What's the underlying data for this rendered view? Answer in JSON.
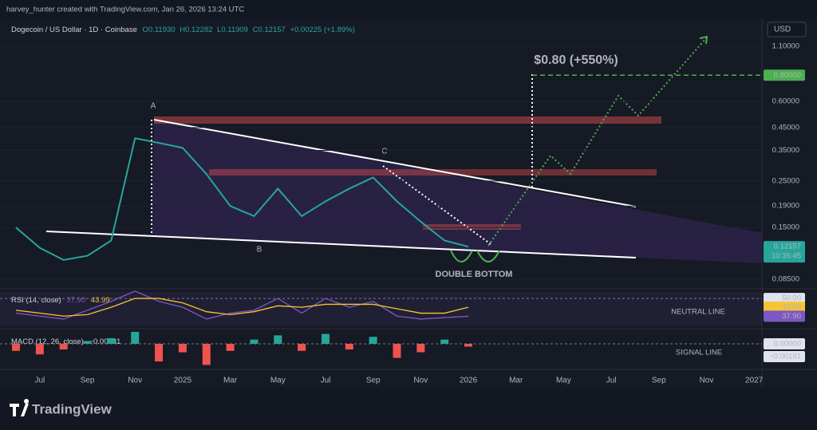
{
  "header": {
    "credit": "harvey_hunter created with TradingView.com, Jan 26, 2026 13:24 UTC",
    "brand": "TradingView",
    "currency": "USD"
  },
  "chart_data": [
    {
      "type": "line",
      "title": "Dogecoin / US Dollar · 1D · Coinbase",
      "ohlc": [
        "O0.11930",
        "H0.12282",
        "L0.11909",
        "C0.12157",
        "+0.00225 (+1.89%)"
      ],
      "log_scale": true,
      "x": [
        "2024-06",
        "2024-07",
        "2024-08",
        "2024-09",
        "2024-10",
        "2024-11",
        "2024-12",
        "2025-01",
        "2025-02",
        "2025-03",
        "2025-04",
        "2025-05",
        "2025-06",
        "2025-07",
        "2025-08",
        "2025-09",
        "2025-10",
        "2025-11",
        "2025-12",
        "2026-01"
      ],
      "series": [
        {
          "color": "#26a69a",
          "values": [
            0.15,
            0.12,
            0.105,
            0.11,
            0.13,
            0.4,
            0.38,
            0.36,
            0.27,
            0.19,
            0.17,
            0.23,
            0.17,
            0.2,
            0.23,
            0.26,
            0.2,
            0.16,
            0.13,
            0.12157
          ]
        }
      ],
      "xlim": [
        "2024-06",
        "2027-02"
      ],
      "xticks": [
        {
          "value": "2024-07",
          "label": "Jul"
        },
        {
          "value": "2024-09",
          "label": "Sep"
        },
        {
          "value": "2024-11",
          "label": "Nov"
        },
        {
          "value": "2025-01",
          "label": "2025"
        },
        {
          "value": "2025-03",
          "label": "Mar"
        },
        {
          "value": "2025-05",
          "label": "May"
        },
        {
          "value": "2025-07",
          "label": "Jul"
        },
        {
          "value": "2025-09",
          "label": "Sep"
        },
        {
          "value": "2025-11",
          "label": "Nov"
        },
        {
          "value": "2026-01",
          "label": "2026"
        },
        {
          "value": "2026-03",
          "label": "Mar"
        },
        {
          "value": "2026-05",
          "label": "May"
        },
        {
          "value": "2026-07",
          "label": "Jul"
        },
        {
          "value": "2026-09",
          "label": "Sep"
        },
        {
          "value": "2026-11",
          "label": "Nov"
        },
        {
          "value": "2027-01",
          "label": "2027"
        }
      ],
      "ylim": [
        0.0765,
        1.43
      ],
      "yticks": [
        {
          "value": 1.1,
          "label": "1.10000"
        },
        {
          "value": 0.6,
          "label": "0.60000"
        },
        {
          "value": 0.45,
          "label": "0.45000"
        },
        {
          "value": 0.35,
          "label": "0.35000"
        },
        {
          "value": 0.25,
          "label": "0.25000"
        },
        {
          "value": 0.19,
          "label": "0.19000"
        },
        {
          "value": 0.15,
          "label": "0.15000"
        },
        {
          "value": 0.085,
          "label": "0.08500"
        }
      ],
      "last_price": {
        "value": 0.12157,
        "label": "0.12157"
      },
      "countdown": "10:35:45",
      "target": {
        "value": 0.8,
        "label": "0.80000",
        "color": "#4caf50"
      },
      "annotations": [
        "$0.80 (+550%)",
        "DOUBLE BOTTOM",
        "A",
        "B",
        "C"
      ]
    },
    {
      "type": "line",
      "title": "RSI (14, close)",
      "series": [
        {
          "color": "#7e57c2",
          "values": [
            40,
            38,
            36,
            42,
            48,
            55,
            48,
            44,
            36,
            40,
            42,
            50,
            40,
            50,
            44,
            48,
            38,
            36,
            37,
            37.9
          ],
          "last_label": "37.90"
        },
        {
          "color": "#f7c531",
          "values": [
            42,
            40,
            38,
            39,
            44,
            50,
            50,
            47,
            41,
            39,
            41,
            45,
            44,
            46,
            46,
            46,
            43,
            40,
            40,
            43.99
          ],
          "last_label": "43.99"
        }
      ],
      "ylim": [
        30,
        56
      ],
      "yticks": [
        {
          "value": 50,
          "label": "50.00"
        }
      ],
      "annotation": "NEUTRAL LINE"
    },
    {
      "type": "bar",
      "title": "MACD (12, 26, close)",
      "values": [
        -0.001,
        -0.0015,
        -0.0008,
        0.0004,
        0.0008,
        0.0017,
        -0.0025,
        -0.0012,
        -0.003,
        -0.001,
        0.0006,
        0.0012,
        -0.001,
        0.0014,
        -0.0008,
        0.001,
        -0.002,
        -0.0012,
        0.0006,
        -0.0004
      ],
      "up_color": "#26a69a",
      "down_color": "#ef5350",
      "macd": {
        "value": -0.00181,
        "label": "−0.00181"
      },
      "ylim": [
        -0.0034,
        0.00181
      ],
      "yticks": [
        {
          "value": 0,
          "label": "0.00000"
        }
      ],
      "annotation": "SIGNAL LINE"
    }
  ]
}
